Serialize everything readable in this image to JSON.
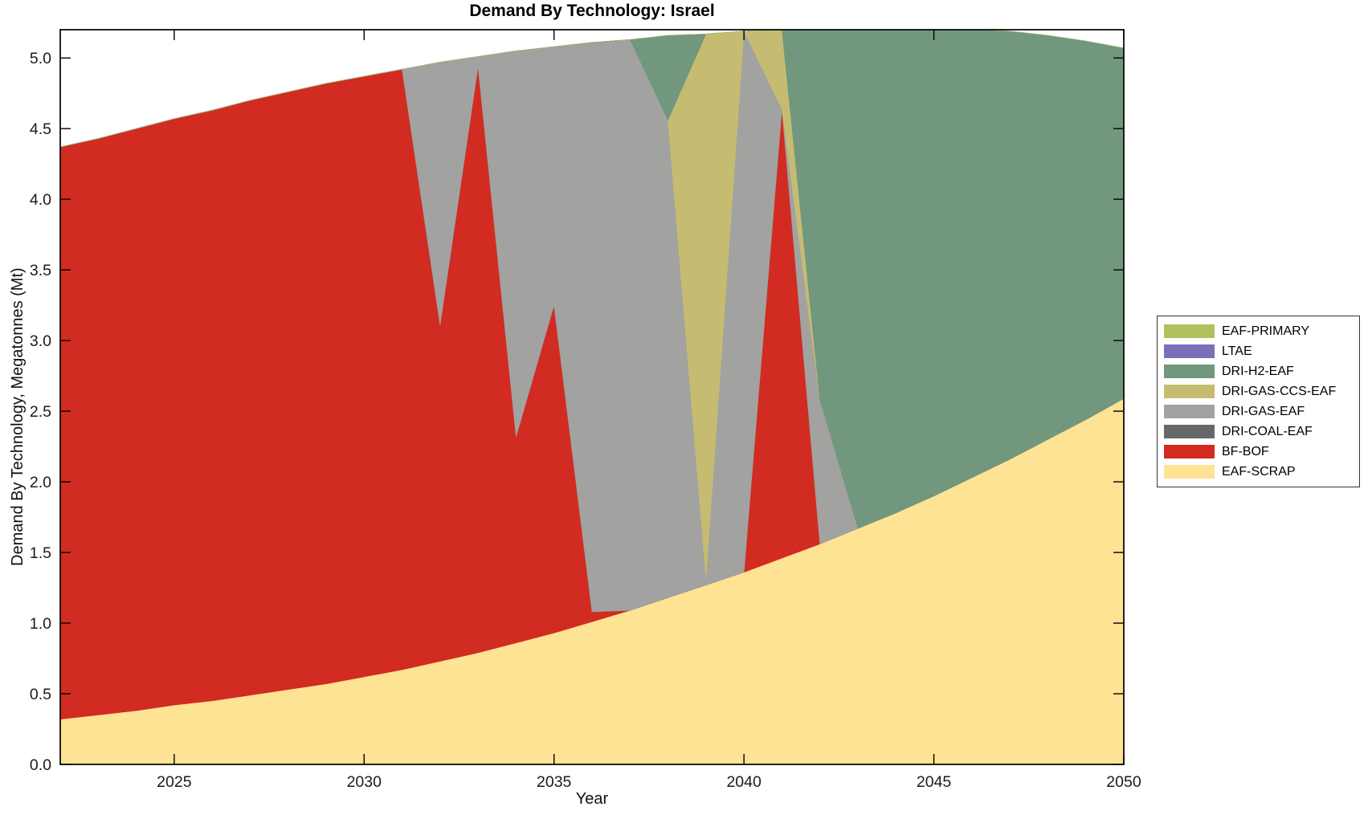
{
  "title": "Demand By Technology: Israel",
  "axes": {
    "xlabel": "Year",
    "ylabel": "Demand By Technology, Megatonnes (Mt)",
    "x_ticks": [
      "2025",
      "2030",
      "2035",
      "2040",
      "2045",
      "2050"
    ],
    "y_ticks": [
      "0.0",
      "0.5",
      "1.0",
      "1.5",
      "2.0",
      "2.5",
      "3.0",
      "3.5",
      "4.0",
      "4.5",
      "5.0"
    ]
  },
  "legend": {
    "items": [
      {
        "label": "EAF-PRIMARY",
        "color": "#b3c05f"
      },
      {
        "label": "LTAE",
        "color": "#7a6fb9"
      },
      {
        "label": "DRI-H2-EAF",
        "color": "#71977e"
      },
      {
        "label": "DRI-GAS-CCS-EAF",
        "color": "#c5bc72"
      },
      {
        "label": "DRI-GAS-EAF",
        "color": "#a2a2a0"
      },
      {
        "label": "DRI-COAL-EAF",
        "color": "#65686a"
      },
      {
        "label": "BF-BOF",
        "color": "#d22b22"
      },
      {
        "label": "EAF-SCRAP",
        "color": "#fde393"
      }
    ]
  },
  "chart_data": {
    "type": "area",
    "stacked": true,
    "title": "Demand By Technology: Israel",
    "xlabel": "Year",
    "ylabel": "Demand By Technology, Megatonnes (Mt)",
    "xlim": [
      2022,
      2050
    ],
    "ylim": [
      0,
      5.2
    ],
    "grid": false,
    "legend_position": "outside-right",
    "x": [
      2022,
      2023,
      2024,
      2025,
      2026,
      2027,
      2028,
      2029,
      2030,
      2031,
      2032,
      2033,
      2034,
      2035,
      2036,
      2037,
      2038,
      2039,
      2040,
      2041,
      2042,
      2043,
      2044,
      2045,
      2046,
      2047,
      2048,
      2049,
      2050
    ],
    "stack_order_bottom_to_top": [
      "EAF-SCRAP",
      "BF-BOF",
      "DRI-COAL-EAF",
      "DRI-GAS-EAF",
      "DRI-GAS-CCS-EAF",
      "DRI-H2-EAF",
      "LTAE",
      "EAF-PRIMARY"
    ],
    "series": [
      {
        "name": "EAF-SCRAP",
        "color": "#fde393",
        "values": [
          0.32,
          0.35,
          0.38,
          0.42,
          0.45,
          0.49,
          0.53,
          0.57,
          0.62,
          0.67,
          0.73,
          0.79,
          0.86,
          0.93,
          1.01,
          1.09,
          1.18,
          1.27,
          1.36,
          1.46,
          1.56,
          1.67,
          1.78,
          1.9,
          2.03,
          2.16,
          2.3,
          2.44,
          2.59
        ]
      },
      {
        "name": "BF-BOF",
        "color": "#d22b22",
        "values": [
          4.05,
          4.08,
          4.12,
          4.15,
          4.18,
          4.21,
          4.23,
          4.25,
          4.25,
          4.25,
          2.38,
          4.15,
          1.46,
          2.32,
          0.07,
          0,
          0,
          0,
          0,
          3.18,
          0,
          0,
          0,
          0,
          0,
          0,
          0,
          0,
          0
        ]
      },
      {
        "name": "DRI-COAL-EAF",
        "color": "#65686a",
        "values": [
          0,
          0,
          0,
          0,
          0,
          0,
          0,
          0,
          0,
          0,
          0,
          0,
          0,
          0,
          0,
          0,
          0,
          0,
          0,
          0,
          0,
          0,
          0,
          0,
          0,
          0,
          0,
          0,
          0
        ]
      },
      {
        "name": "DRI-GAS-EAF",
        "color": "#a2a2a0",
        "values": [
          0,
          0,
          0,
          0,
          0,
          0,
          0,
          0,
          0,
          0,
          1.86,
          0.07,
          2.73,
          1.83,
          4.03,
          4.04,
          3.38,
          0.05,
          3.83,
          0,
          1.02,
          0,
          0,
          0,
          0,
          0,
          0,
          0,
          0
        ]
      },
      {
        "name": "DRI-GAS-CCS-EAF",
        "color": "#c5bc72",
        "values": [
          0,
          0,
          0,
          0,
          0,
          0,
          0,
          0,
          0,
          0,
          0,
          0,
          0,
          0,
          0,
          0,
          0,
          3.85,
          0,
          0.56,
          0,
          0,
          0,
          0,
          0,
          0,
          0,
          0,
          0
        ]
      },
      {
        "name": "DRI-H2-EAF",
        "color": "#71977e",
        "values": [
          0,
          0,
          0,
          0,
          0,
          0,
          0,
          0,
          0,
          0,
          0,
          0,
          0,
          0,
          0,
          0,
          0.6,
          0,
          0,
          0,
          2.63,
          3.55,
          3.44,
          3.32,
          3.18,
          3.03,
          2.86,
          2.68,
          2.48
        ]
      },
      {
        "name": "LTAE",
        "color": "#7a6fb9",
        "values": [
          0,
          0,
          0,
          0,
          0,
          0,
          0,
          0,
          0,
          0,
          0,
          0,
          0,
          0,
          0,
          0,
          0,
          0,
          0,
          0,
          0,
          0,
          0,
          0,
          0,
          0,
          0,
          0,
          0
        ]
      },
      {
        "name": "EAF-PRIMARY",
        "color": "#b3c05f",
        "values": [
          0,
          0,
          0,
          0,
          0,
          0,
          0,
          0,
          0,
          0,
          0,
          0,
          0,
          0,
          0,
          0,
          0,
          0,
          0,
          0,
          0,
          0,
          0,
          0,
          0,
          0,
          0,
          0,
          0
        ]
      }
    ]
  }
}
